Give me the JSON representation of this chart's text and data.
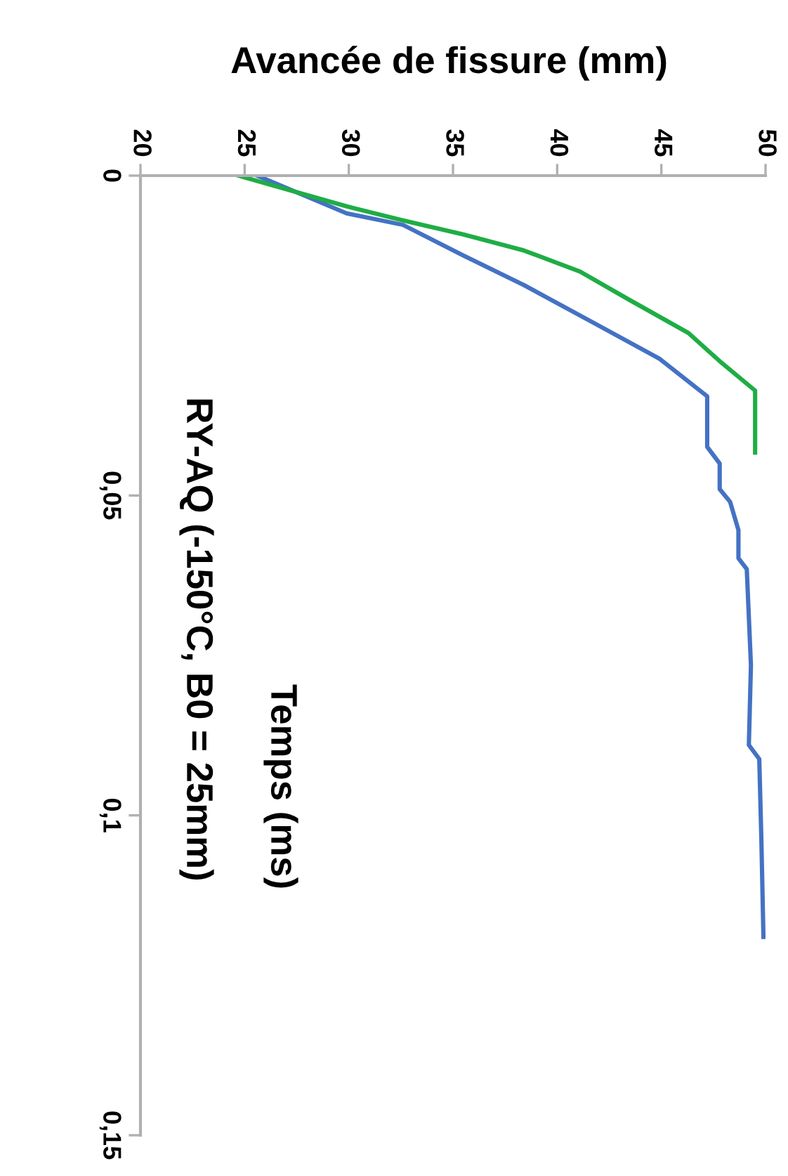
{
  "chart_data": {
    "type": "line",
    "title": "RY-AQ (-150°C, B0 = 25mm)",
    "xlabel": "Avancée de fissure (mm)",
    "ylabel": "Temps (ms)",
    "ylim": [
      0.15,
      0
    ],
    "yticks": [
      0,
      {
        "value": 0.05,
        "label": "0,05"
      },
      {
        "value": 0.1,
        "label": "0,1"
      },
      {
        "value": 0.15,
        "label": "0,15"
      }
    ],
    "xlim": [
      20,
      50
    ],
    "xticks": [
      20,
      25,
      30,
      35,
      40,
      45,
      50
    ],
    "grid": false,
    "legend": false,
    "series": [
      {
        "color": "#4472c4",
        "values": [
          0,
          0.0059,
          0.0077,
          0.0125,
          0.0171,
          0.0231,
          0.0286,
          0.0345,
          0.0424,
          0.045,
          0.049,
          0.051,
          0.0554,
          0.0598,
          0.0615,
          0.0765,
          0.089,
          0.0912,
          0.1037,
          0.119
        ],
        "x": [
          25.6,
          29.9,
          32.6,
          35.5,
          38.4,
          41.8,
          44.9,
          47.2,
          47.2,
          47.8,
          47.8,
          48.3,
          48.7,
          48.7,
          49.1,
          49.3,
          49.2,
          49.7,
          49.8,
          49.9
        ]
      },
      {
        "color": "#1fad45",
        "values": [
          0,
          0.0048,
          0.007,
          0.0092,
          0.0117,
          0.015,
          0.0193,
          0.0246,
          0.029,
          0.0336,
          0.0433
        ],
        "x": [
          24.7,
          29.9,
          32.6,
          35.5,
          38.4,
          41.1,
          43.4,
          46.3,
          47.8,
          49.5,
          49.5
        ]
      }
    ]
  }
}
